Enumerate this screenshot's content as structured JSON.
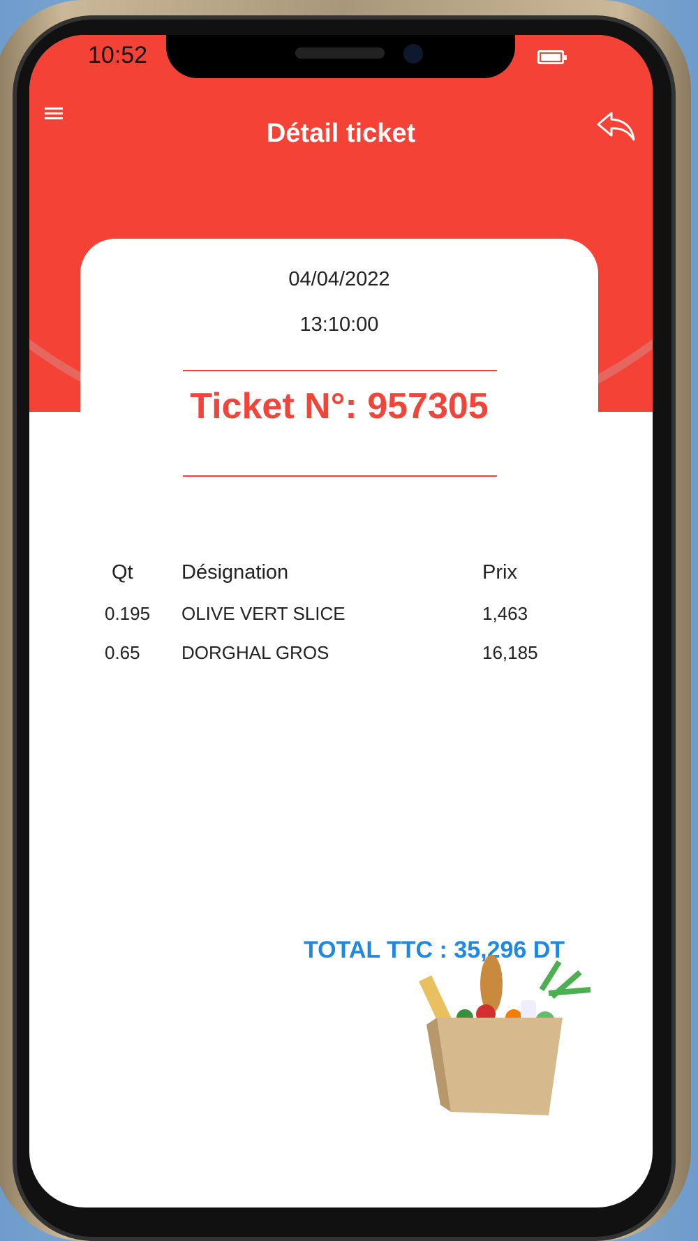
{
  "status_bar": {
    "time": "10:52",
    "battery_icon": "battery-full-icon"
  },
  "header": {
    "title": "Détail ticket",
    "menu_icon": "hamburger-menu-icon",
    "back_icon": "reply-arrow-icon",
    "color": "#f44336"
  },
  "ticket": {
    "date": "04/04/2022",
    "time": "13:10:00",
    "number_label": "Ticket N°: 957305"
  },
  "table": {
    "headers": {
      "qty": "Qt",
      "designation": "Désignation",
      "price": "Prix"
    },
    "rows": [
      {
        "qty": "0.195",
        "designation": "OLIVE VERT SLICE",
        "price": "1,463"
      },
      {
        "qty": "0.65",
        "designation": "DORGHAL GROS",
        "price": "16,185"
      }
    ]
  },
  "total": {
    "label": "TOTAL TTC : 35,296 DT",
    "color": "#1e88e5"
  },
  "image": {
    "icon": "grocery-bag-image"
  }
}
